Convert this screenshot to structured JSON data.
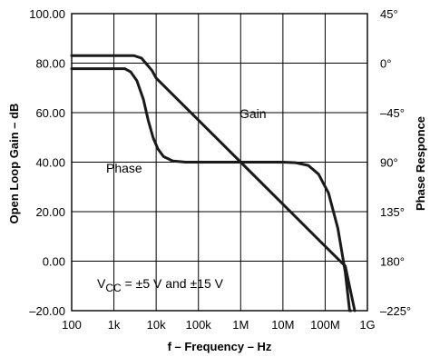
{
  "chart_data": {
    "type": "line",
    "xlabel": "f – Frequency – Hz",
    "ylabel_left": "Open Loop Gain – dB",
    "ylabel_right": "Phase Responce",
    "x_scale": "log",
    "xlim": [
      100,
      1000000000
    ],
    "ylim_left": [
      -20,
      100
    ],
    "ylim_right": [
      45,
      -225
    ],
    "x_ticks": [
      {
        "value": 100,
        "label": "100"
      },
      {
        "value": 1000,
        "label": "1k"
      },
      {
        "value": 10000,
        "label": "10k"
      },
      {
        "value": 100000,
        "label": "100k"
      },
      {
        "value": 1000000,
        "label": "1M"
      },
      {
        "value": 10000000,
        "label": "10M"
      },
      {
        "value": 100000000,
        "label": "100M"
      },
      {
        "value": 1000000000,
        "label": "1G"
      }
    ],
    "y_ticks_left": [
      {
        "value": 100,
        "label": "100.00"
      },
      {
        "value": 80,
        "label": "80.00"
      },
      {
        "value": 60,
        "label": "60.00"
      },
      {
        "value": 40,
        "label": "40.00"
      },
      {
        "value": 20,
        "label": "20.00"
      },
      {
        "value": 0,
        "label": "0.00"
      },
      {
        "value": -20,
        "label": "–20.00"
      }
    ],
    "y_ticks_right": [
      {
        "value": 45,
        "label": "45°"
      },
      {
        "value": 0,
        "label": "0°"
      },
      {
        "value": -45,
        "label": "–45°"
      },
      {
        "value": -90,
        "label": "90°"
      },
      {
        "value": -135,
        "label": "135°"
      },
      {
        "value": -180,
        "label": "180°"
      },
      {
        "value": -225,
        "label": "–225°"
      }
    ],
    "grid": true,
    "series": [
      {
        "name": "Gain",
        "axis": "left",
        "x": [
          100,
          3000,
          4500,
          6000,
          8000,
          10000,
          100000,
          1000000,
          10000000,
          100000000,
          300000000,
          500000000
        ],
        "y": [
          83,
          83,
          82,
          79.5,
          77,
          74,
          57,
          40,
          23,
          6,
          -2,
          -20
        ]
      },
      {
        "name": "Phase",
        "axis": "right",
        "x": [
          100,
          1800,
          2500,
          3500,
          5000,
          6500,
          8500,
          11000,
          15000,
          25000,
          50000,
          100000,
          1000000,
          10000000,
          20000000,
          40000000,
          70000000,
          120000000,
          200000000,
          300000000,
          380000000,
          400000000
        ],
        "y": [
          -5,
          -5,
          -8,
          -16,
          -33,
          -52,
          -68,
          -78,
          -85,
          -89,
          -90,
          -90,
          -90,
          -90,
          -90.5,
          -93,
          -101,
          -118,
          -150,
          -190,
          -225,
          -225
        ]
      }
    ],
    "annotations": {
      "gain_label": "Gain",
      "phase_label": "Phase",
      "vcc_main": "V",
      "vcc_sub": "CC",
      "vcc_rest": " = ±5 V and ±15 V"
    }
  },
  "colors": {
    "curve": "#1a1a1a",
    "grid": "#000000",
    "background": "#ffffff"
  }
}
